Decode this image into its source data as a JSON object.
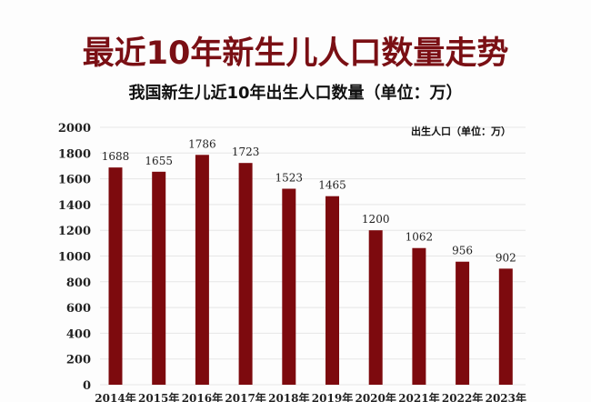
{
  "chart_data": {
    "type": "bar",
    "title": "最近10年新生儿人口数量走势",
    "subtitle": "我国新生儿近10年出生人口数量（单位：万）",
    "legend": "出生人口（单位：万）",
    "legend_placement": "top-right",
    "categories": [
      "2014年",
      "2015年",
      "2016年",
      "2017年",
      "2018年",
      "2019年",
      "2020年",
      "2021年",
      "2022年",
      "2023年"
    ],
    "values": [
      1688,
      1655,
      1786,
      1723,
      1523,
      1465,
      1200,
      1062,
      956,
      902
    ],
    "yticks": [
      0,
      200,
      400,
      600,
      800,
      1000,
      1200,
      1400,
      1600,
      1800,
      2000
    ],
    "ylim": [
      0,
      2000
    ],
    "grid": true,
    "bar_color": "#7d0a0e",
    "title_color": "#7a0f14"
  }
}
